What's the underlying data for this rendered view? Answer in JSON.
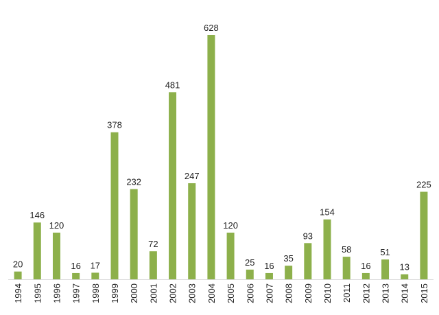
{
  "chart_data": {
    "type": "bar",
    "categories": [
      "1994",
      "1995",
      "1996",
      "1997",
      "1998",
      "1999",
      "2000",
      "2001",
      "2002",
      "2003",
      "2004",
      "2005",
      "2006",
      "2007",
      "2008",
      "2009",
      "2010",
      "2011",
      "2012",
      "2013",
      "2014",
      "2015"
    ],
    "values": [
      20,
      146,
      120,
      16,
      17,
      378,
      232,
      72,
      481,
      247,
      628,
      120,
      25,
      16,
      35,
      93,
      154,
      58,
      16,
      51,
      13,
      225
    ],
    "title": "",
    "xlabel": "",
    "ylabel": "",
    "ylim": [
      0,
      628
    ],
    "grid": false,
    "legend": "none",
    "data_labels": true,
    "bar_color": "#8db04b",
    "axis_color": "#d9d9d9",
    "text_color": "#222222"
  }
}
